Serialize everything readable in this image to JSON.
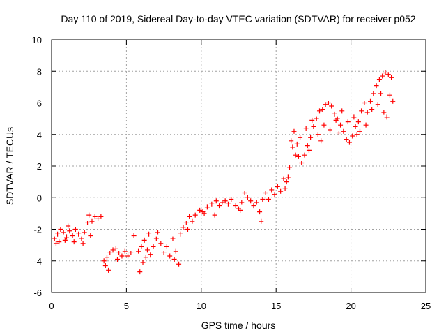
{
  "chart_data": {
    "type": "scatter",
    "title": "Day 110 of 2019, Sidereal Day-to-day VTEC variation (SDTVAR) for receiver p052",
    "xlabel": "GPS time / hours",
    "ylabel": "SDTVAR / TECUs",
    "xlim": [
      0,
      25
    ],
    "ylim": [
      -6,
      10
    ],
    "xticks": [
      0,
      5,
      10,
      15,
      20,
      25
    ],
    "yticks": [
      -6,
      -4,
      -2,
      0,
      2,
      4,
      6,
      8,
      10
    ],
    "grid": true,
    "marker": "plus",
    "color": "#ff0000",
    "series": [
      {
        "name": "SDTVAR",
        "points": [
          [
            0.2,
            -2.6
          ],
          [
            0.4,
            -2.3
          ],
          [
            0.6,
            -2.0
          ],
          [
            0.8,
            -2.2
          ],
          [
            1.0,
            -2.5
          ],
          [
            1.2,
            -2.1
          ],
          [
            1.4,
            -2.4
          ],
          [
            1.6,
            -2.0
          ],
          [
            1.8,
            -2.3
          ],
          [
            2.0,
            -2.6
          ],
          [
            2.2,
            -2.2
          ],
          [
            2.4,
            -1.6
          ],
          [
            2.5,
            -1.1
          ],
          [
            2.7,
            -1.5
          ],
          [
            2.9,
            -1.2
          ],
          [
            3.1,
            -1.3
          ],
          [
            3.3,
            -1.2
          ],
          [
            0.5,
            -2.8
          ],
          [
            0.9,
            -2.7
          ],
          [
            1.5,
            -2.8
          ],
          [
            2.1,
            -2.9
          ],
          [
            2.6,
            -2.4
          ],
          [
            3.5,
            -4.0
          ],
          [
            3.6,
            -4.3
          ],
          [
            3.7,
            -3.8
          ],
          [
            3.9,
            -3.5
          ],
          [
            4.1,
            -3.3
          ],
          [
            4.3,
            -3.2
          ],
          [
            4.5,
            -3.5
          ],
          [
            4.7,
            -3.7
          ],
          [
            4.9,
            -3.4
          ],
          [
            5.1,
            -3.7
          ],
          [
            5.3,
            -3.5
          ],
          [
            5.5,
            -2.4
          ],
          [
            5.8,
            -3.4
          ],
          [
            6.0,
            -3.1
          ],
          [
            6.2,
            -2.7
          ],
          [
            6.4,
            -3.3
          ],
          [
            6.6,
            -3.6
          ],
          [
            6.8,
            -3.1
          ],
          [
            7.0,
            -2.6
          ],
          [
            7.1,
            -2.2
          ],
          [
            5.9,
            -4.7
          ],
          [
            6.1,
            -4.1
          ],
          [
            6.3,
            -3.8
          ],
          [
            7.5,
            -3.5
          ],
          [
            7.7,
            -3.1
          ],
          [
            7.9,
            -3.7
          ],
          [
            8.1,
            -2.6
          ],
          [
            8.3,
            -3.4
          ],
          [
            8.5,
            -4.2
          ],
          [
            8.6,
            -2.3
          ],
          [
            8.8,
            -1.9
          ],
          [
            9.0,
            -1.6
          ],
          [
            9.2,
            -1.2
          ],
          [
            9.4,
            -1.5
          ],
          [
            9.6,
            -1.1
          ],
          [
            9.9,
            -0.8
          ],
          [
            10.1,
            -0.9
          ],
          [
            10.4,
            -0.6
          ],
          [
            10.7,
            -0.4
          ],
          [
            10.9,
            -1.1
          ],
          [
            11.2,
            -0.5
          ],
          [
            11.4,
            -0.3
          ],
          [
            11.6,
            -0.2
          ],
          [
            11.8,
            -0.4
          ],
          [
            12.0,
            -0.1
          ],
          [
            12.3,
            -0.5
          ],
          [
            12.5,
            -0.7
          ],
          [
            12.7,
            -0.3
          ],
          [
            12.9,
            0.3
          ],
          [
            13.1,
            0.0
          ],
          [
            13.3,
            -0.2
          ],
          [
            13.5,
            -0.5
          ],
          [
            13.7,
            -0.3
          ],
          [
            13.9,
            -0.9
          ],
          [
            14.1,
            -0.1
          ],
          [
            14.3,
            0.3
          ],
          [
            14.5,
            -0.1
          ],
          [
            14.7,
            0.5
          ],
          [
            14.9,
            0.2
          ],
          [
            15.1,
            0.7
          ],
          [
            15.3,
            0.4
          ],
          [
            15.5,
            1.2
          ],
          [
            15.6,
            0.6
          ],
          [
            15.8,
            1.3
          ],
          [
            15.9,
            1.9
          ],
          [
            16.0,
            3.6
          ],
          [
            16.1,
            3.2
          ],
          [
            16.3,
            2.7
          ],
          [
            16.5,
            2.6
          ],
          [
            16.7,
            2.2
          ],
          [
            16.9,
            2.7
          ],
          [
            17.1,
            3.3
          ],
          [
            17.3,
            3.8
          ],
          [
            17.5,
            4.5
          ],
          [
            17.7,
            5.0
          ],
          [
            17.9,
            5.5
          ],
          [
            18.1,
            5.6
          ],
          [
            18.3,
            5.9
          ],
          [
            18.5,
            6.0
          ],
          [
            18.7,
            5.8
          ],
          [
            18.9,
            5.3
          ],
          [
            19.1,
            5.0
          ],
          [
            19.3,
            4.6
          ],
          [
            19.5,
            4.2
          ],
          [
            19.7,
            3.7
          ],
          [
            19.9,
            3.5
          ],
          [
            20.1,
            3.9
          ],
          [
            20.3,
            4.5
          ],
          [
            20.5,
            4.8
          ],
          [
            20.7,
            5.5
          ],
          [
            20.9,
            6.0
          ],
          [
            21.1,
            5.4
          ],
          [
            21.3,
            6.1
          ],
          [
            21.5,
            6.6
          ],
          [
            21.7,
            7.1
          ],
          [
            21.9,
            7.5
          ],
          [
            22.1,
            7.7
          ],
          [
            22.3,
            7.9
          ],
          [
            22.5,
            7.8
          ],
          [
            22.7,
            7.6
          ],
          [
            16.2,
            4.2
          ],
          [
            16.6,
            3.8
          ],
          [
            17.0,
            4.4
          ],
          [
            17.4,
            4.9
          ],
          [
            17.8,
            4.0
          ],
          [
            18.2,
            4.6
          ],
          [
            18.6,
            4.3
          ],
          [
            19.0,
            4.9
          ],
          [
            19.4,
            5.5
          ],
          [
            19.8,
            4.8
          ],
          [
            20.2,
            5.1
          ],
          [
            20.6,
            4.2
          ],
          [
            21.0,
            4.6
          ],
          [
            21.4,
            5.6
          ],
          [
            21.8,
            5.9
          ],
          [
            22.2,
            5.4
          ],
          [
            22.6,
            6.5
          ],
          [
            22.8,
            6.1
          ],
          [
            22.4,
            5.1
          ],
          [
            22.0,
            6.6
          ],
          [
            17.2,
            3.0
          ],
          [
            18.0,
            3.6
          ],
          [
            19.2,
            4.1
          ],
          [
            20.4,
            4.0
          ],
          [
            16.4,
            3.4
          ],
          [
            15.7,
            1.0
          ],
          [
            14.0,
            -1.5
          ],
          [
            12.6,
            -0.8
          ],
          [
            11.0,
            -0.2
          ],
          [
            10.2,
            -1.0
          ],
          [
            9.1,
            -2.0
          ],
          [
            8.2,
            -3.9
          ],
          [
            7.3,
            -2.9
          ],
          [
            6.5,
            -2.3
          ],
          [
            4.4,
            -3.9
          ],
          [
            3.8,
            -4.6
          ],
          [
            1.1,
            -1.8
          ],
          [
            0.3,
            -2.9
          ]
        ]
      }
    ]
  }
}
